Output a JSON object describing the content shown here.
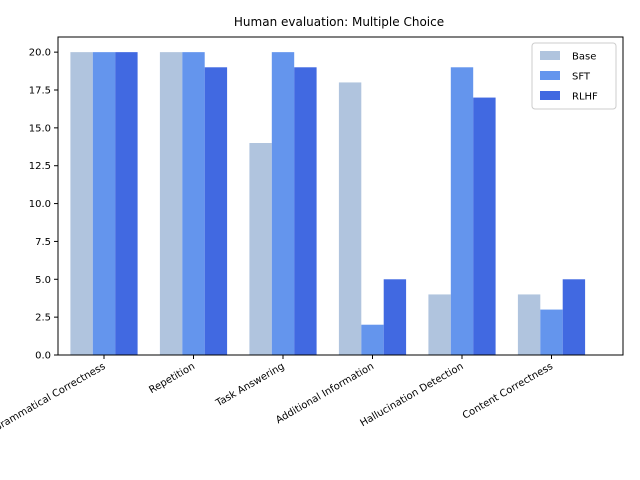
{
  "chart_data": {
    "type": "bar",
    "title": "Human evaluation: Multiple Choice",
    "xlabel": "",
    "ylabel": "",
    "categories": [
      "Grammatical Correctness",
      "Repetition",
      "Task Answering",
      "Additional Information",
      "Hallucination Detection",
      "Content Correctness"
    ],
    "series": [
      {
        "name": "Base",
        "color": "#b0c4de",
        "values": [
          20,
          20,
          14,
          18,
          4,
          4
        ]
      },
      {
        "name": "SFT",
        "color": "#6495ed",
        "values": [
          20,
          20,
          20,
          2,
          19,
          3
        ]
      },
      {
        "name": "RLHF",
        "color": "#4169e1",
        "values": [
          20,
          19,
          19,
          5,
          17,
          5
        ]
      }
    ],
    "ylim": [
      0,
      21
    ],
    "yticks": [
      "0.0",
      "2.5",
      "5.0",
      "7.5",
      "10.0",
      "12.5",
      "15.0",
      "17.5",
      "20.0"
    ],
    "legend_position": "top-right",
    "grid": false
  }
}
